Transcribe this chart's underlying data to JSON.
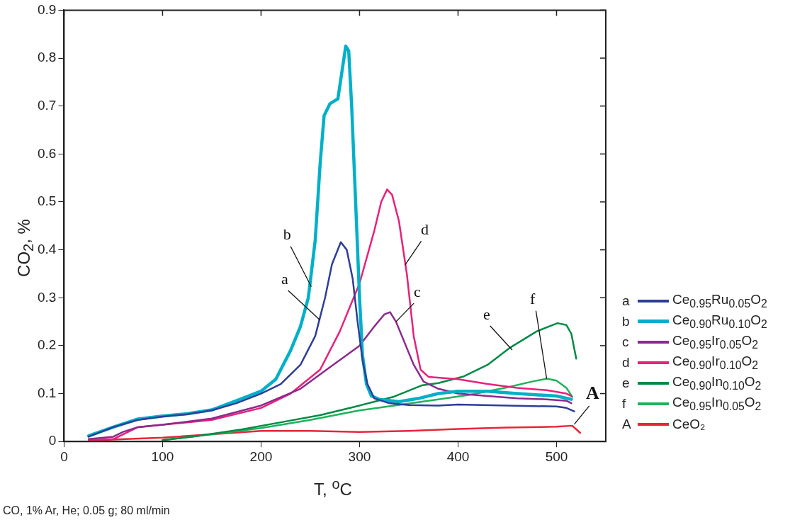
{
  "chart_data": {
    "type": "line",
    "xlabel": "T, $^{o}$C",
    "ylabel": "CO$_{2}$, %",
    "xlim": [
      0,
      550
    ],
    "xticks": [
      0,
      100,
      200,
      300,
      400,
      500
    ],
    "ylim": [
      0,
      0.9
    ],
    "yticks": [
      0,
      0.1,
      0.2,
      0.3,
      0.4,
      0.5,
      0.6,
      0.7,
      0.8,
      0.9
    ],
    "legend": "right",
    "marker": "none",
    "line_style": "solid",
    "series": [
      {
        "name": "Ce$_{0.95}$Ru$_{0.05}$O$_{2}$",
        "color": "#2e3d98",
        "x": [
          25,
          50,
          75,
          100,
          125,
          150,
          175,
          200,
          220,
          240,
          255,
          265,
          272,
          281,
          287,
          293,
          298,
          303,
          308,
          315,
          330,
          350,
          380,
          400,
          450,
          500,
          510,
          518
        ],
        "values": [
          0.01,
          0.03,
          0.045,
          0.052,
          0.057,
          0.065,
          0.08,
          0.1,
          0.12,
          0.16,
          0.22,
          0.3,
          0.37,
          0.416,
          0.4,
          0.34,
          0.25,
          0.17,
          0.12,
          0.09,
          0.08,
          0.076,
          0.075,
          0.077,
          0.075,
          0.073,
          0.07,
          0.063
        ]
      },
      {
        "name": "Ce$_{0.90}$Ru$_{0.10}$O$_{2}$",
        "color": "#00b0c8",
        "x": [
          25,
          50,
          75,
          100,
          125,
          150,
          175,
          200,
          215,
          230,
          240,
          248,
          255,
          260,
          264,
          270,
          278,
          282,
          286,
          289,
          292,
          296,
          300,
          303,
          307,
          312,
          320,
          340,
          360,
          380,
          400,
          430,
          460,
          500,
          515
        ],
        "values": [
          0.012,
          0.03,
          0.047,
          0.053,
          0.058,
          0.066,
          0.085,
          0.105,
          0.13,
          0.19,
          0.24,
          0.3,
          0.42,
          0.58,
          0.68,
          0.705,
          0.715,
          0.77,
          0.825,
          0.815,
          0.7,
          0.5,
          0.3,
          0.18,
          0.12,
          0.095,
          0.088,
          0.083,
          0.09,
          0.1,
          0.105,
          0.105,
          0.1,
          0.095,
          0.088
        ]
      },
      {
        "name": "Ce$_{0.95}$Ir$_{0.05}$O$_{2}$",
        "color": "#8b2a8e",
        "x": [
          25,
          50,
          60,
          75,
          100,
          150,
          200,
          240,
          270,
          300,
          315,
          325,
          331,
          337,
          345,
          355,
          365,
          380,
          400,
          430,
          460,
          490,
          510,
          515
        ],
        "values": [
          0.005,
          0.01,
          0.02,
          0.03,
          0.035,
          0.048,
          0.075,
          0.11,
          0.155,
          0.2,
          0.24,
          0.265,
          0.27,
          0.25,
          0.21,
          0.16,
          0.125,
          0.11,
          0.1,
          0.095,
          0.09,
          0.088,
          0.085,
          0.08
        ]
      },
      {
        "name": "Ce$_{0.90}$Ir$_{0.10}$O$_{2}$",
        "color": "#e8217a",
        "x": [
          25,
          50,
          60,
          75,
          100,
          150,
          200,
          230,
          260,
          280,
          300,
          315,
          322,
          328,
          333,
          340,
          348,
          355,
          362,
          370,
          400,
          430,
          460,
          490,
          510,
          515
        ],
        "values": [
          0.003,
          0.005,
          0.015,
          0.03,
          0.035,
          0.045,
          0.07,
          0.1,
          0.15,
          0.23,
          0.33,
          0.44,
          0.5,
          0.526,
          0.515,
          0.46,
          0.35,
          0.22,
          0.15,
          0.135,
          0.13,
          0.12,
          0.112,
          0.107,
          0.1,
          0.095
        ]
      },
      {
        "name": "Ce$_{0.90}$In$_{0.10}$O$_{2}$",
        "color": "#008a45",
        "x": [
          100,
          130,
          180,
          220,
          260,
          300,
          334,
          363,
          380,
          406,
          430,
          453,
          480,
          501,
          510,
          515,
          520
        ],
        "values": [
          0.003,
          0.01,
          0.025,
          0.04,
          0.055,
          0.075,
          0.093,
          0.117,
          0.122,
          0.136,
          0.16,
          0.196,
          0.23,
          0.247,
          0.243,
          0.225,
          0.173
        ]
      },
      {
        "name": "Ce$_{0.95}$In$_{0.05}$O$_{2}$",
        "color": "#1db35a",
        "x": [
          100,
          150,
          200,
          250,
          300,
          339,
          380,
          413,
          450,
          475,
          490,
          500,
          510,
          516
        ],
        "values": [
          0.003,
          0.015,
          0.028,
          0.045,
          0.065,
          0.076,
          0.088,
          0.098,
          0.113,
          0.125,
          0.131,
          0.127,
          0.112,
          0.093
        ]
      },
      {
        "name": "CeO₂",
        "color": "#e8253a",
        "x": [
          25,
          100,
          150,
          200,
          250,
          300,
          350,
          400,
          450,
          500,
          516,
          524
        ],
        "values": [
          0.002,
          0.008,
          0.015,
          0.022,
          0.022,
          0.02,
          0.022,
          0.026,
          0.029,
          0.031,
          0.033,
          0.018
        ]
      }
    ],
    "annotations": [
      {
        "text": "a",
        "x": 260,
        "y": 0.253
      },
      {
        "text": "b",
        "x": 251,
        "y": 0.323
      },
      {
        "text": "c",
        "x": 337,
        "y": 0.25
      },
      {
        "text": "d",
        "x": 346,
        "y": 0.368
      },
      {
        "text": "e",
        "x": 455,
        "y": 0.191
      },
      {
        "text": "f",
        "x": 490,
        "y": 0.131
      },
      {
        "text": "A",
        "x": 518,
        "y": 0.036
      },
      "CO, 1% Ar, He; 0.05 g; 80 ml/min"
    ]
  }
}
